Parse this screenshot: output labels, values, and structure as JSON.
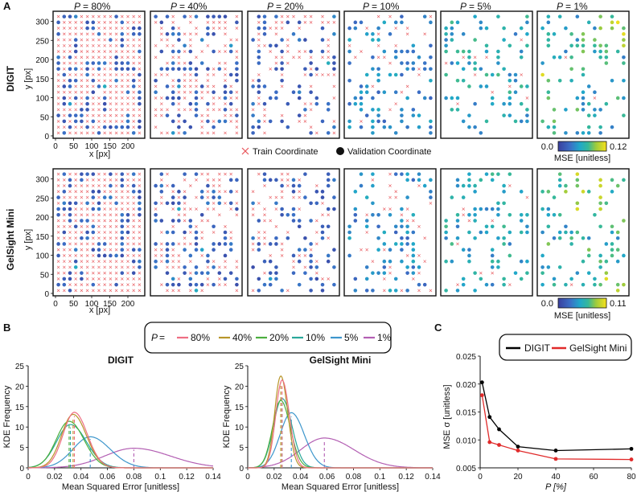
{
  "panel_labels": {
    "a": "A",
    "b": "B",
    "c": "C"
  },
  "scatter_section": {
    "p_prefix": "P",
    "percent_labels": [
      "= 80%",
      "= 40%",
      "= 20%",
      "= 10%",
      "= 5%",
      "= 1%"
    ],
    "rows": [
      {
        "name": "DIGIT",
        "ylabel": "y [px]",
        "xlabel": "x [px]",
        "colorbar": {
          "label": "MSE [unitless]",
          "min": "0.0",
          "max": "0.12"
        }
      },
      {
        "name": "GelSight Mini",
        "ylabel": "y [px]",
        "xlabel": "x [px]",
        "colorbar": {
          "label": "MSE [unitless]",
          "min": "0.0",
          "max": "0.11"
        }
      }
    ],
    "x_ticks": [
      "0",
      "50",
      "100",
      "150",
      "200"
    ],
    "y_ticks": [
      "0",
      "50",
      "100",
      "150",
      "200",
      "250",
      "300"
    ],
    "legend": {
      "train": "Train Coordinate",
      "validation": "Validation Coordinate"
    },
    "colors": {
      "train_marker": "#e8555a",
      "panel_border": "#111111"
    }
  },
  "chart_data": [
    {
      "type": "line",
      "id": "kde-digit",
      "title": "DIGIT",
      "xlabel": "Mean Squared Error [unitless]",
      "ylabel": "KDE Frequency",
      "xlim": [
        0,
        0.14
      ],
      "ylim": [
        0,
        25
      ],
      "x_ticks": [
        "0",
        "0.02",
        "0.04",
        "0.06",
        "0.08",
        "0.1",
        "0.12",
        "0.14"
      ],
      "y_ticks": [
        "0",
        "5",
        "10",
        "15",
        "20",
        "25"
      ],
      "series": [
        {
          "name": "80%",
          "color": "#ee6e83",
          "mean": 0.035,
          "peak": 13.6,
          "sd": 0.0085
        },
        {
          "name": "40%",
          "color": "#b8962a",
          "mean": 0.034,
          "peak": 13.1,
          "sd": 0.0088
        },
        {
          "name": "20%",
          "color": "#4caf3f",
          "mean": 0.031,
          "peak": 11.4,
          "sd": 0.0098
        },
        {
          "name": "10%",
          "color": "#2aa89a",
          "mean": 0.032,
          "peak": 10.6,
          "sd": 0.0105
        },
        {
          "name": "5%",
          "color": "#3d96cc",
          "mean": 0.047,
          "peak": 7.6,
          "sd": 0.013
        },
        {
          "name": "1%",
          "color": "#b35fb3",
          "mean": 0.08,
          "peak": 4.8,
          "sd": 0.022
        }
      ]
    },
    {
      "type": "line",
      "id": "kde-gelsight",
      "title": "GelSight Mini",
      "xlabel": "Mean Squared Error [unitless]",
      "ylabel": "KDE Frequency",
      "xlim": [
        0,
        0.14
      ],
      "ylim": [
        0,
        25
      ],
      "x_ticks": [
        "0",
        "0.02",
        "0.04",
        "0.06",
        "0.08",
        "0.1",
        "0.12",
        "0.14"
      ],
      "y_ticks": [
        "0",
        "5",
        "10",
        "15",
        "20",
        "25"
      ],
      "series": [
        {
          "name": "80%",
          "color": "#ee6e83",
          "mean": 0.026,
          "peak": 21.5,
          "sd": 0.0048
        },
        {
          "name": "40%",
          "color": "#b8962a",
          "mean": 0.025,
          "peak": 22.5,
          "sd": 0.0046
        },
        {
          "name": "20%",
          "color": "#4caf3f",
          "mean": 0.025,
          "peak": 16.5,
          "sd": 0.0062
        },
        {
          "name": "10%",
          "color": "#2aa89a",
          "mean": 0.026,
          "peak": 17.0,
          "sd": 0.0065
        },
        {
          "name": "5%",
          "color": "#3d96cc",
          "mean": 0.033,
          "peak": 13.5,
          "sd": 0.0085
        },
        {
          "name": "1%",
          "color": "#b35fb3",
          "mean": 0.058,
          "peak": 7.3,
          "sd": 0.018
        }
      ]
    },
    {
      "type": "line",
      "id": "std-vs-p",
      "xlabel": "P [%]",
      "ylabel": "MSE σ [unitless]",
      "xlim": [
        0,
        80
      ],
      "ylim": [
        0.005,
        0.025
      ],
      "x_ticks": [
        "0",
        "20",
        "40",
        "60",
        "80"
      ],
      "y_ticks": [
        "0.005",
        "0.010",
        "0.015",
        "0.020",
        "0.025"
      ],
      "x": [
        1,
        5,
        10,
        20,
        40,
        80
      ],
      "series": [
        {
          "name": "DIGIT",
          "color": "#000000",
          "values": [
            0.0203,
            0.0141,
            0.0119,
            0.0088,
            0.0081,
            0.0084
          ]
        },
        {
          "name": "GelSight Mini",
          "color": "#e02a2a",
          "values": [
            0.018,
            0.0096,
            0.0091,
            0.0081,
            0.0066,
            0.0065
          ]
        }
      ]
    }
  ],
  "kde_legend": {
    "prefix": "P",
    "entries": [
      "= 80%",
      "40%",
      "20%",
      "10%",
      "5%",
      "1%"
    ]
  }
}
